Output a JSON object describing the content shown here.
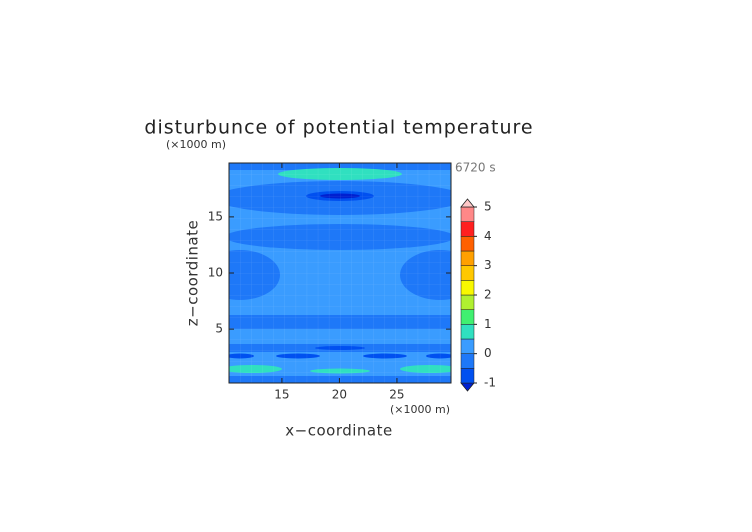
{
  "chart_data": {
    "type": "contour",
    "title": "disturbunce of potential temperature",
    "y_unit": "(×1000 m)",
    "x_unit": "(×1000 m)",
    "time_label": "6720 s",
    "xlabel": "x−coordinate",
    "ylabel": "z−coordinate",
    "xlim": [
      10.4,
      29.7
    ],
    "ylim": [
      0.2,
      19.8
    ],
    "xticks": [
      15,
      20,
      25
    ],
    "yticks": [
      5,
      10,
      15
    ],
    "colorbar": {
      "levels": [
        -1,
        -0.5,
        0,
        0.5,
        1,
        1.5,
        2,
        2.5,
        3,
        3.5,
        4,
        4.5,
        5
      ],
      "ticks": [
        -1,
        0,
        1,
        2,
        3,
        4,
        5
      ],
      "colors": [
        "#0020d0",
        "#0050f0",
        "#1e78f8",
        "#3a9cff",
        "#30e0c0",
        "#40f070",
        "#b0f030",
        "#f8f800",
        "#ffc800",
        "#ffa000",
        "#ff6000",
        "#ff2020",
        "#ff8888",
        "#ffc8c8"
      ]
    }
  }
}
